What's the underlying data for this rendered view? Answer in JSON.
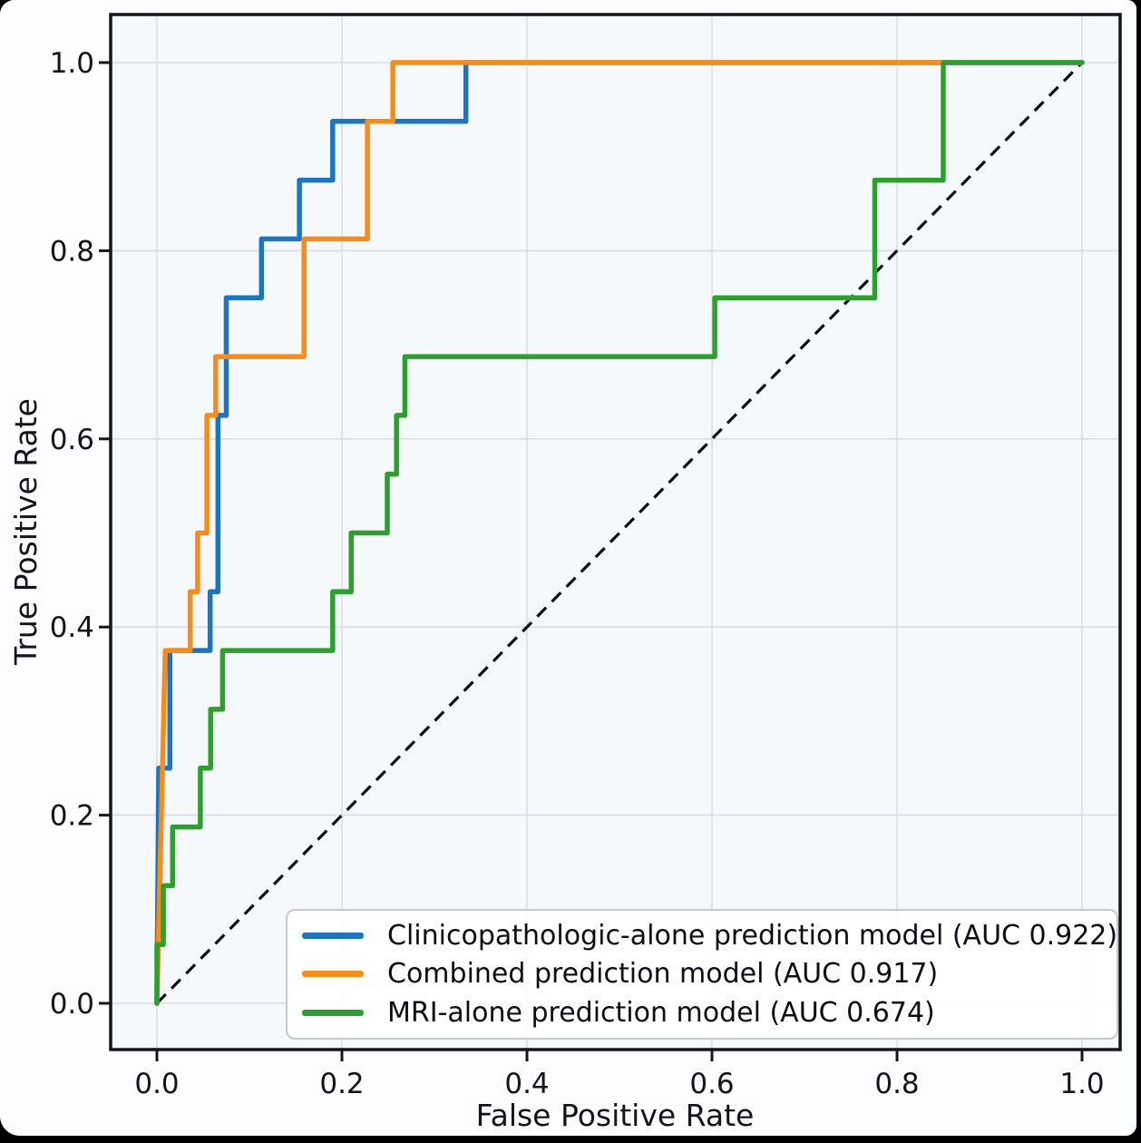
{
  "figure": {
    "title": "",
    "xlabel": "False Positive Rate",
    "ylabel": "True Positive Rate"
  },
  "chart_data": {
    "type": "line",
    "subtype": "roc-step-curves",
    "title": "",
    "xlabel": "False Positive Rate",
    "ylabel": "True Positive Rate",
    "xlim": [
      0.0,
      1.0
    ],
    "ylim": [
      0.0,
      1.0
    ],
    "x_ticks": [
      0.0,
      0.2,
      0.4,
      0.6,
      0.8,
      1.0
    ],
    "y_ticks": [
      0.0,
      0.2,
      0.4,
      0.6,
      0.8,
      1.0
    ],
    "x_tick_labels": [
      "0.0",
      "0.2",
      "0.4",
      "0.6",
      "0.8",
      "1.0"
    ],
    "y_tick_labels": [
      "0.0",
      "0.2",
      "0.4",
      "0.6",
      "0.8",
      "1.0"
    ],
    "grid": true,
    "grid_color": "#d9dee6",
    "plot_background": "#f6f9fc",
    "figure_background": "#fcfdfe",
    "spine_color": "#15151c",
    "legend_position": "lower right",
    "reference_line": {
      "name": "chance-diagonal",
      "style": "dashed",
      "color": "#0a0a12",
      "points": [
        [
          0.0,
          0.0
        ],
        [
          1.0,
          1.0
        ]
      ]
    },
    "series": [
      {
        "name": "Clinicopathologic-alone prediction model (AUC 0.922)",
        "auc": 0.922,
        "color": "#1a75c2",
        "points": [
          [
            0.0,
            0.0
          ],
          [
            0.002,
            0.25
          ],
          [
            0.014,
            0.25
          ],
          [
            0.014,
            0.375
          ],
          [
            0.0575,
            0.375
          ],
          [
            0.0575,
            0.4375
          ],
          [
            0.066,
            0.4375
          ],
          [
            0.066,
            0.625
          ],
          [
            0.075,
            0.625
          ],
          [
            0.075,
            0.75
          ],
          [
            0.113,
            0.75
          ],
          [
            0.113,
            0.8125
          ],
          [
            0.154,
            0.8125
          ],
          [
            0.154,
            0.875
          ],
          [
            0.19,
            0.875
          ],
          [
            0.19,
            0.9375
          ],
          [
            0.334,
            0.9375
          ],
          [
            0.334,
            1.0
          ],
          [
            1.0,
            1.0
          ]
        ]
      },
      {
        "name": "Combined prediction model (AUC 0.917)",
        "auc": 0.917,
        "color": "#f98c15",
        "points": [
          [
            0.0,
            0.0
          ],
          [
            0.009,
            0.375
          ],
          [
            0.036,
            0.375
          ],
          [
            0.036,
            0.4375
          ],
          [
            0.044,
            0.4375
          ],
          [
            0.044,
            0.5
          ],
          [
            0.054,
            0.5
          ],
          [
            0.054,
            0.625
          ],
          [
            0.0635,
            0.625
          ],
          [
            0.0635,
            0.6875
          ],
          [
            0.159,
            0.6875
          ],
          [
            0.159,
            0.8125
          ],
          [
            0.2275,
            0.8125
          ],
          [
            0.2275,
            0.9375
          ],
          [
            0.255,
            0.9375
          ],
          [
            0.255,
            1.0
          ],
          [
            1.0,
            1.0
          ]
        ]
      },
      {
        "name": "MRI-alone prediction model (AUC 0.674)",
        "auc": 0.674,
        "color": "#2ca02c",
        "points": [
          [
            0.0,
            0.0
          ],
          [
            0.0,
            0.0625
          ],
          [
            0.007,
            0.0625
          ],
          [
            0.007,
            0.125
          ],
          [
            0.017,
            0.125
          ],
          [
            0.017,
            0.1875
          ],
          [
            0.047,
            0.1875
          ],
          [
            0.047,
            0.25
          ],
          [
            0.058,
            0.25
          ],
          [
            0.058,
            0.3125
          ],
          [
            0.071,
            0.3125
          ],
          [
            0.071,
            0.375
          ],
          [
            0.19,
            0.375
          ],
          [
            0.19,
            0.4375
          ],
          [
            0.21,
            0.4375
          ],
          [
            0.21,
            0.5
          ],
          [
            0.249,
            0.5
          ],
          [
            0.249,
            0.5625
          ],
          [
            0.259,
            0.5625
          ],
          [
            0.259,
            0.625
          ],
          [
            0.268,
            0.625
          ],
          [
            0.268,
            0.6875
          ],
          [
            0.603,
            0.6875
          ],
          [
            0.603,
            0.75
          ],
          [
            0.776,
            0.75
          ],
          [
            0.776,
            0.875
          ],
          [
            0.85,
            0.875
          ],
          [
            0.85,
            1.0
          ],
          [
            1.0,
            1.0
          ]
        ]
      }
    ]
  }
}
